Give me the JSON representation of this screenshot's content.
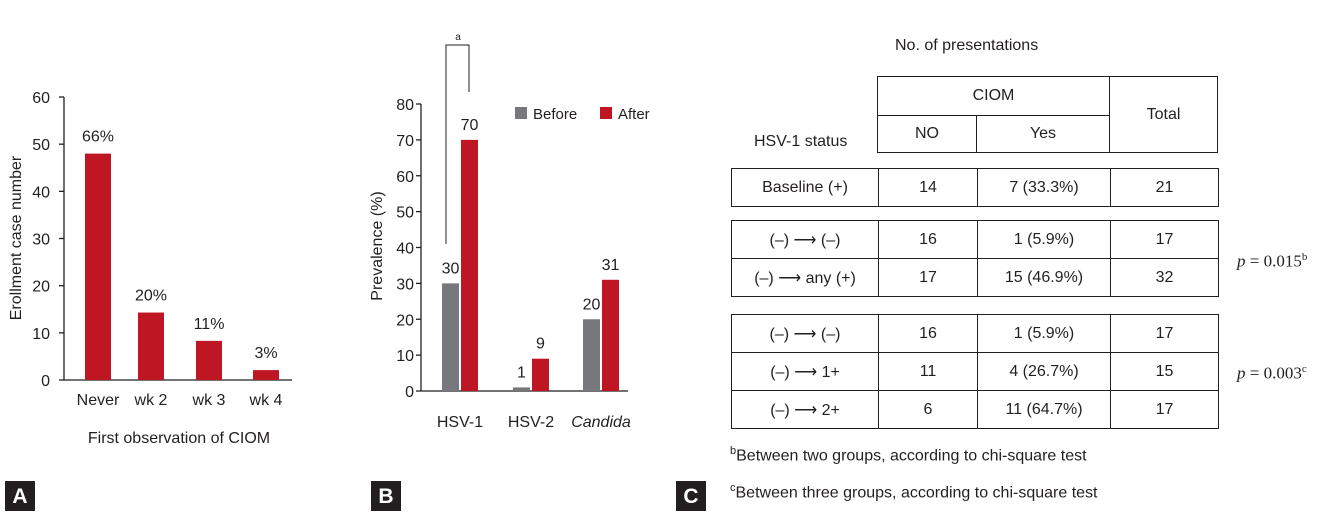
{
  "colors": {
    "red": "#be1622",
    "gray": "#77787b",
    "ink": "#231f20"
  },
  "chart_data": [
    {
      "type": "bar",
      "panel": "A",
      "categories": [
        "Never",
        "wk 2",
        "wk 3",
        "wk 4"
      ],
      "values": [
        48,
        14.3,
        8.3,
        2.1
      ],
      "data_labels": [
        "66%",
        "20%",
        "11%",
        "3%"
      ],
      "yticks": [
        "0",
        "10",
        "20",
        "30",
        "40",
        "50",
        "60"
      ],
      "ylim": [
        0,
        60
      ],
      "xlabel": "First observation of CIOM",
      "ylabel": "Erollment case number"
    },
    {
      "type": "bar",
      "panel": "B",
      "categories": [
        "HSV-1",
        "HSV-2",
        "Candida"
      ],
      "series": [
        {
          "name": "Before",
          "values": [
            30,
            1,
            20
          ],
          "labels": [
            "30",
            "1",
            "20"
          ]
        },
        {
          "name": "After",
          "values": [
            70,
            9,
            31
          ],
          "labels": [
            "70",
            "9",
            "31"
          ]
        }
      ],
      "yticks": [
        "0",
        "10",
        "20",
        "30",
        "40",
        "50",
        "60",
        "70",
        "80"
      ],
      "ylim": [
        0,
        80
      ],
      "ylabel": "Prevalence (%)",
      "annotation": "a"
    },
    {
      "type": "table",
      "panel": "C",
      "title": "No. of presentations",
      "row_header": "HSV-1 status",
      "group_header": "CIOM",
      "col_no": "NO",
      "col_yes": "Yes",
      "col_total": "Total",
      "groups": [
        {
          "rows": [
            {
              "label": "Baseline (+)",
              "no": "14",
              "yes": "7 (33.3%)",
              "total": "21"
            }
          ]
        },
        {
          "rows": [
            {
              "label": "(–) ⟶ (–)",
              "no": "16",
              "yes": "1 (5.9%)",
              "total": "17"
            },
            {
              "label": "(–) ⟶ any (+)",
              "no": "17",
              "yes": "15 (46.9%)",
              "total": "32"
            }
          ],
          "p_label": "p",
          "p_value": " = 0.015",
          "p_sup": "b"
        },
        {
          "rows": [
            {
              "label": "(–) ⟶ (–)",
              "no": "16",
              "yes": "1 (5.9%)",
              "total": "17"
            },
            {
              "label": "(–) ⟶ 1+",
              "no": "11",
              "yes": "4 (26.7%)",
              "total": "15"
            },
            {
              "label": "(–) ⟶ 2+",
              "no": "6",
              "yes": "11 (64.7%)",
              "total": "17"
            }
          ],
          "p_label": "p",
          "p_value": " = 0.003",
          "p_sup": "c"
        }
      ],
      "footnotes": [
        {
          "sup": "b",
          "text": "Between two groups, according to chi-square test"
        },
        {
          "sup": "c",
          "text": "Between three groups, according to chi-square test"
        }
      ]
    }
  ],
  "panel_letters": [
    "A",
    "B",
    "C"
  ]
}
